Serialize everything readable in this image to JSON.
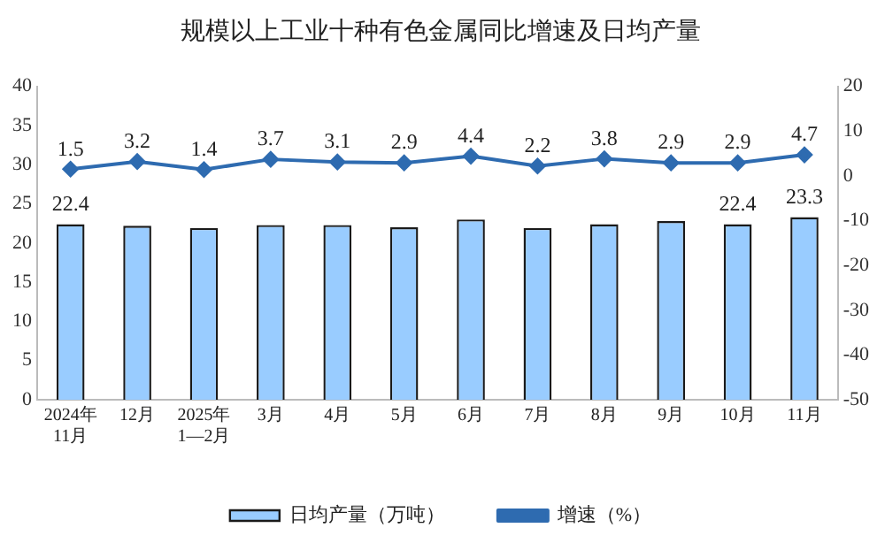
{
  "chart_data": {
    "type": "bar",
    "title": "规模以上工业十种有色金属同比增速及日均产量",
    "categories": [
      "2024年\n11月",
      "12月",
      "2025年\n1—2月",
      "3月",
      "4月",
      "5月",
      "6月",
      "7月",
      "8月",
      "9月",
      "10月",
      "11月"
    ],
    "series": [
      {
        "name": "日均产量（万吨）",
        "color": "#99ccff",
        "values": [
          22.4,
          22.2,
          21.9,
          22.3,
          22.3,
          22.0,
          23.0,
          21.9,
          22.4,
          22.8,
          22.4,
          23.3
        ],
        "value_labels": [
          "22.4",
          null,
          null,
          null,
          null,
          null,
          null,
          null,
          null,
          null,
          "22.4",
          "23.3"
        ]
      },
      {
        "name": "增速（%）",
        "type": "line",
        "axis": "y2",
        "color": "#2e6bb0",
        "marker": "diamond",
        "values": [
          1.5,
          3.2,
          1.4,
          3.7,
          3.1,
          2.9,
          4.4,
          2.2,
          3.8,
          2.9,
          2.9,
          4.7
        ],
        "value_labels": [
          "1.5",
          "3.2",
          "1.4",
          "3.7",
          "3.1",
          "2.9",
          "4.4",
          "2.2",
          "3.8",
          "2.9",
          "2.9",
          "4.7"
        ]
      }
    ],
    "ylim": [
      0,
      40
    ],
    "yticks": [
      0,
      5,
      10,
      15,
      20,
      25,
      30,
      35,
      40
    ],
    "y2lim": [
      -50,
      20
    ],
    "y2ticks": [
      -50,
      -40,
      -30,
      -20,
      -10,
      0,
      10,
      20
    ],
    "grid": false,
    "legend": "bottom"
  }
}
